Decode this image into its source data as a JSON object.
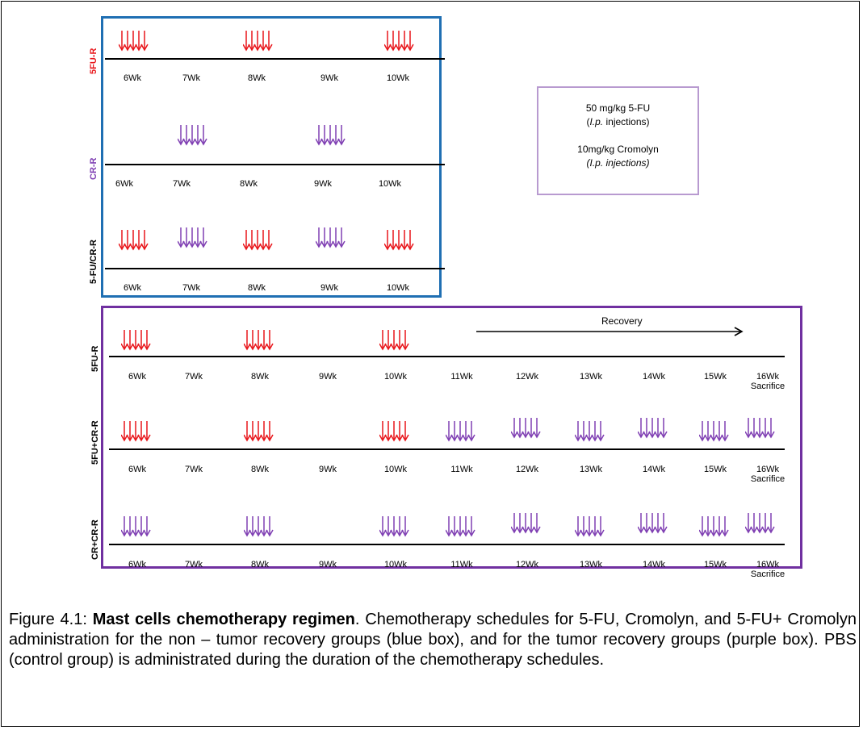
{
  "legend": {
    "line1": "50 mg/kg 5-FU",
    "line2_italic": "I.p.",
    "line2_rest": " injections)",
    "line3": "10mg/kg Cromolyn",
    "line4": "(I.p. injections)"
  },
  "colors": {
    "fu": "#e8161b",
    "cr": "#7f3fb3",
    "blue_box": "#1f6fb3",
    "purple_box": "#7030a0"
  },
  "blue_groups": [
    {
      "label": "5FU-R",
      "label_color": "#e8161b",
      "weeks": [
        "6Wk",
        "7Wk",
        "8Wk",
        "9Wk",
        "10Wk"
      ],
      "doses": [
        "fu",
        null,
        "fu",
        null,
        "fu"
      ]
    },
    {
      "label": "CR-R",
      "label_color": "#7f3fb3",
      "weeks": [
        "6Wk",
        "7Wk",
        "8Wk",
        "9Wk",
        "10Wk"
      ],
      "doses": [
        null,
        "cr",
        null,
        "cr",
        null
      ]
    },
    {
      "label": "5-FU/CR-R",
      "label_color": "#000000",
      "weeks": [
        "6Wk",
        "7Wk",
        "8Wk",
        "9Wk",
        "10Wk"
      ],
      "doses": [
        "fu",
        "cr",
        "fu",
        "cr",
        "fu"
      ]
    }
  ],
  "recovery_label": "Recovery",
  "purple_groups": [
    {
      "label": "5FU-R",
      "weeks": [
        "6Wk",
        "7Wk",
        "8Wk",
        "9Wk",
        "10Wk",
        "11Wk",
        "12Wk",
        "13Wk",
        "14Wk",
        "15Wk",
        "16Wk"
      ],
      "last_note": "Sacrifice",
      "doses": [
        "fu",
        null,
        "fu",
        null,
        "fu",
        null,
        null,
        null,
        null,
        null,
        null
      ]
    },
    {
      "label": "5FU+CR-R",
      "weeks": [
        "6Wk",
        "7Wk",
        "8Wk",
        "9Wk",
        "10Wk",
        "11Wk",
        "12Wk",
        "13Wk",
        "14Wk",
        "15Wk",
        "16Wk"
      ],
      "last_note": "Sacrifice",
      "doses": [
        "fu",
        null,
        "fu",
        null,
        "fu",
        "cr",
        "cr",
        "cr",
        "cr",
        "cr",
        "cr"
      ]
    },
    {
      "label": "CR+CR-R",
      "weeks": [
        "6Wk",
        "7Wk",
        "8Wk",
        "9Wk",
        "10Wk",
        "11Wk",
        "12Wk",
        "13Wk",
        "14Wk",
        "15Wk",
        "16Wk"
      ],
      "last_note": "Sacrifice",
      "doses": [
        "cr",
        null,
        "cr",
        null,
        "cr",
        "cr",
        "cr",
        "cr",
        "cr",
        "cr",
        "cr"
      ]
    }
  ],
  "caption": {
    "prefix": "Figure 4.1: ",
    "bold": "Mast cells chemotherapy regimen",
    "rest": ".  Chemotherapy schedules for 5-FU, Cromolyn, and 5-FU+ Cromolyn administration for the non – tumor recovery groups (blue box), and for the tumor recovery groups (purple box). PBS (control group) is administrated during the duration of the chemotherapy schedules."
  }
}
